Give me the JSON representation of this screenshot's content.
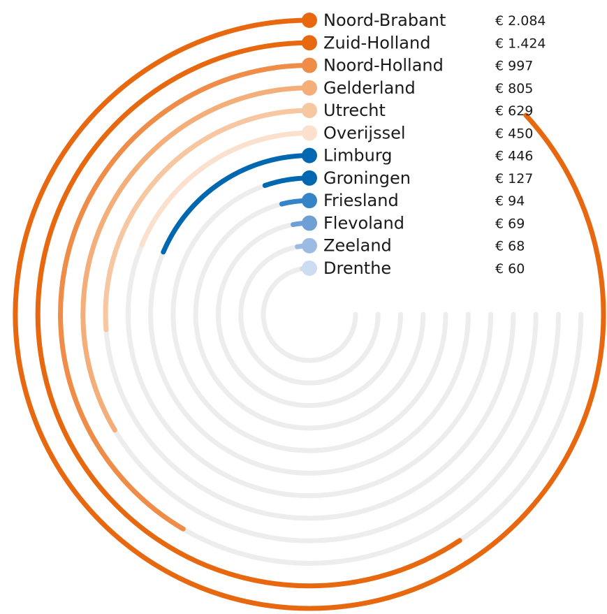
{
  "chart_data": {
    "type": "radial-bar",
    "max_value": 2400,
    "categories": [
      "Noord-Brabant",
      "Zuid-Holland",
      "Noord-Holland",
      "Gelderland",
      "Utrecht",
      "Overijssel",
      "Limburg",
      "Groningen",
      "Friesland",
      "Flevoland",
      "Zeeland",
      "Drenthe"
    ],
    "values": [
      2084,
      1424,
      997,
      805,
      629,
      450,
      446,
      127,
      94,
      69,
      68,
      60
    ],
    "value_labels": [
      "€ 2.084",
      "€ 1.424",
      "€ 997",
      "€ 805",
      "€ 629",
      "€ 450",
      "€ 446",
      "€ 127",
      "€ 94",
      "€ 69",
      "€ 68",
      "€ 60"
    ],
    "colors": [
      "#e8680f",
      "#e8680f",
      "#ef8c48",
      "#f3ae7a",
      "#f7c7a2",
      "#fbe0cd",
      "#0067b1",
      "#0067b1",
      "#3584c8",
      "#6e9fd5",
      "#9cbbe3",
      "#ccdcf1"
    ],
    "track_color": "#ededed",
    "grid": false,
    "legend": "inline-labels"
  }
}
